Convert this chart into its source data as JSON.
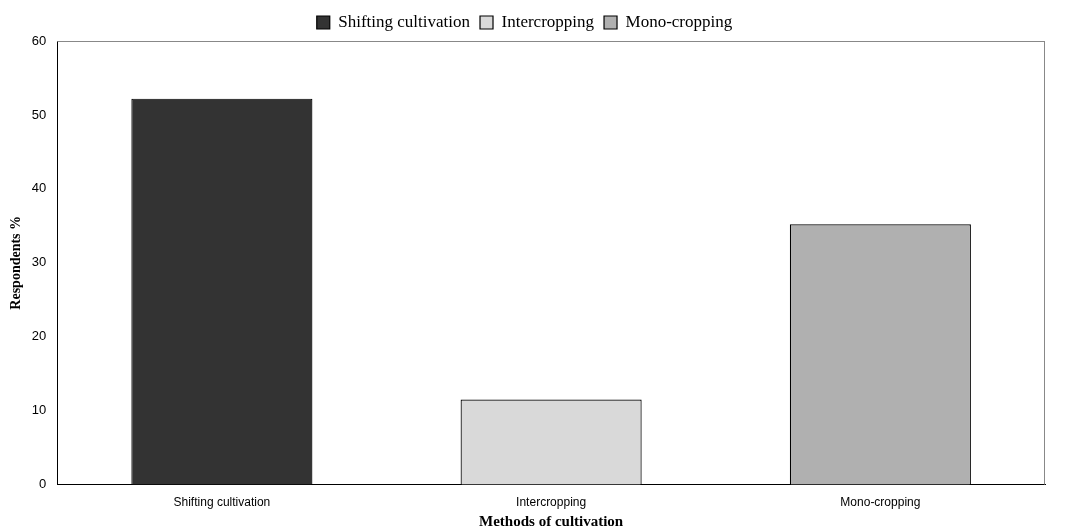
{
  "chart_data": {
    "type": "bar",
    "xlabel": "Methods of cultivation",
    "ylabel": "Respondents %",
    "categories": [
      "Shifting cultivation",
      "Intercropping",
      "Mono-cropping"
    ],
    "series": [
      {
        "name": "Shifting cultivation",
        "color": "#333333",
        "values": [
          52.2,
          null,
          null
        ]
      },
      {
        "name": "Intercropping",
        "color": "#d9d9d9",
        "values": [
          null,
          11.5,
          null
        ]
      },
      {
        "name": "Mono-cropping",
        "color": "#b0b0b0",
        "values": [
          null,
          null,
          35.2
        ]
      }
    ],
    "ylim": [
      0,
      60
    ],
    "yticks": [
      0,
      10,
      20,
      30,
      40,
      50,
      60
    ],
    "grid": false,
    "legend": "top"
  }
}
